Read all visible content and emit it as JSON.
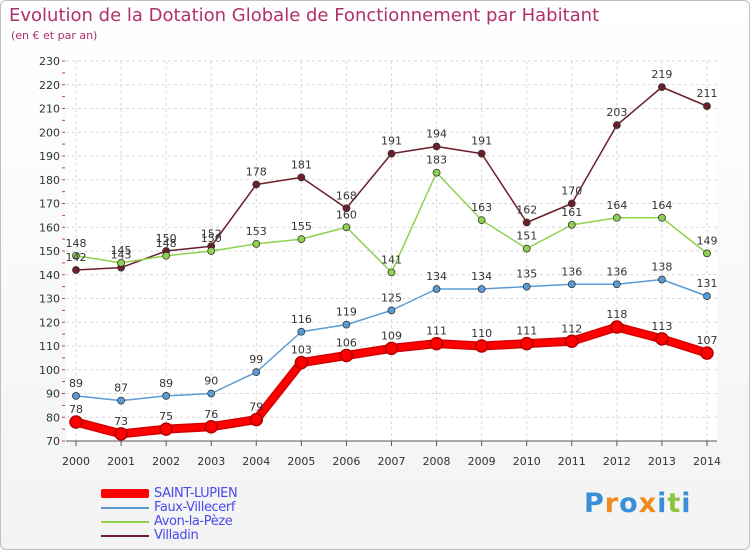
{
  "header": {
    "title": "Evolution de la Dotation Globale de Fonctionnement par Habitant",
    "subtitle": "(en € et par an)"
  },
  "legend": [
    {
      "label": "SAINT-LUPIEN",
      "color": "#ff0000"
    },
    {
      "label": "Faux-Villecerf",
      "color": "#5b9bd5"
    },
    {
      "label": "Avon-la-Pèze",
      "color": "#8fd14f"
    },
    {
      "label": "Villadin",
      "color": "#6b1f2a"
    }
  ],
  "logo": {
    "text": "Proxiti",
    "letters": [
      "P",
      "r",
      "o",
      "x",
      "i",
      "t",
      "i"
    ],
    "colors": [
      "#3a8fd9",
      "#f08a1c",
      "#3a8fd9",
      "#f08a1c",
      "#3a8fd9",
      "#8cc63f",
      "#3a8fd9"
    ]
  },
  "chart_data": {
    "type": "line",
    "title": "Evolution de la Dotation Globale de Fonctionnement par Habitant",
    "subtitle": "(en € et par an)",
    "x": [
      "2000",
      "2001",
      "2002",
      "2003",
      "2004",
      "2005",
      "2006",
      "2007",
      "2008",
      "2009",
      "2010",
      "2011",
      "2012",
      "2013",
      "2014"
    ],
    "ylim": [
      70,
      230
    ],
    "yticks": [
      70,
      80,
      90,
      100,
      110,
      120,
      130,
      140,
      150,
      160,
      170,
      180,
      190,
      200,
      210,
      220,
      230
    ],
    "grid": true,
    "legend_position": "bottom-left",
    "series": [
      {
        "name": "Villadin",
        "color": "#6b1f2a",
        "values": [
          142,
          143,
          150,
          152,
          178,
          181,
          168,
          191,
          194,
          191,
          162,
          170,
          203,
          219,
          211
        ]
      },
      {
        "name": "Avon-la-Pèze",
        "color": "#8fd14f",
        "values": [
          148,
          145,
          148,
          150,
          153,
          155,
          160,
          141,
          183,
          163,
          151,
          161,
          164,
          164,
          149
        ]
      },
      {
        "name": "Faux-Villecerf",
        "color": "#5b9bd5",
        "values": [
          89,
          87,
          89,
          90,
          99,
          116,
          119,
          125,
          134,
          134,
          135,
          136,
          136,
          138,
          131
        ]
      },
      {
        "name": "SAINT-LUPIEN",
        "color": "#ff0000",
        "values": [
          78,
          73,
          75,
          76,
          79,
          103,
          106,
          109,
          111,
          110,
          111,
          112,
          118,
          113,
          107
        ]
      }
    ]
  }
}
